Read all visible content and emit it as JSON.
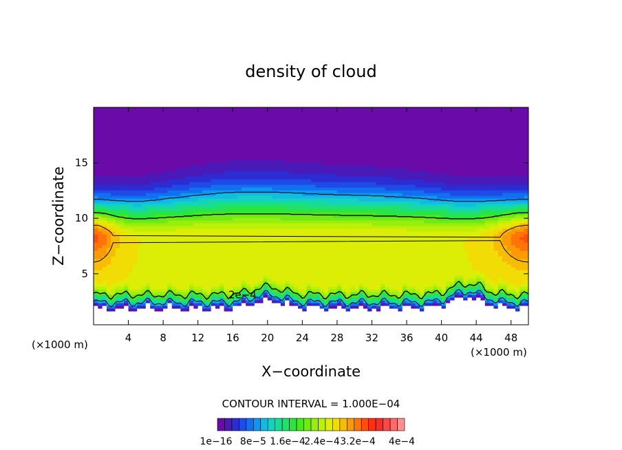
{
  "chart_data": {
    "type": "heatmap",
    "title": "density of cloud",
    "xlabel": "X−coordinate",
    "ylabel": "Z−coordinate",
    "x_unit_left": "(×1000 m)",
    "x_unit_right": "(×1000 m)",
    "xlim": [
      0,
      50
    ],
    "ylim": [
      0.4,
      20
    ],
    "x_ticks": [
      4,
      8,
      12,
      16,
      20,
      24,
      28,
      32,
      36,
      40,
      44,
      48
    ],
    "x_tick_labels": [
      "4",
      "8",
      "12",
      "16",
      "20",
      "24",
      "28",
      "32",
      "36",
      "40",
      "44",
      "48"
    ],
    "y_ticks": [
      5,
      10,
      15
    ],
    "y_tick_labels": [
      "5",
      "10",
      "15"
    ],
    "contour_interval_text": "CONTOUR INTERVAL = 1.000E−04",
    "contour_label": "2e−4",
    "contour_label_pos": [
      15.5,
      3.1
    ],
    "colorbar_labels": [
      "1e−16",
      "8e−5",
      "1.6e−4",
      "2.4e−4",
      "3.2e−4",
      "4e−4"
    ],
    "colorbar_range": [
      0,
      0.00044
    ],
    "colormap": [
      "#6a0aa8",
      "#4a1ab8",
      "#2c2cd2",
      "#1e4ae6",
      "#1270f0",
      "#0e96f0",
      "#10bce0",
      "#14d2c2",
      "#18dc96",
      "#1ee26a",
      "#2ce43e",
      "#4ae61e",
      "#70ea12",
      "#98ee0c",
      "#bcf008",
      "#dcee06",
      "#f2dc06",
      "#f8bc06",
      "#fc9a06",
      "#fe7408",
      "#fe500c",
      "#fe3010",
      "#fe2a28",
      "#fe4848",
      "#fe6a6a",
      "#ff9090",
      "#ffffff"
    ],
    "contour_levels": [
      0.0001,
      0.0002,
      0.0003
    ],
    "grid": false,
    "legend": "bottom colorbar"
  }
}
